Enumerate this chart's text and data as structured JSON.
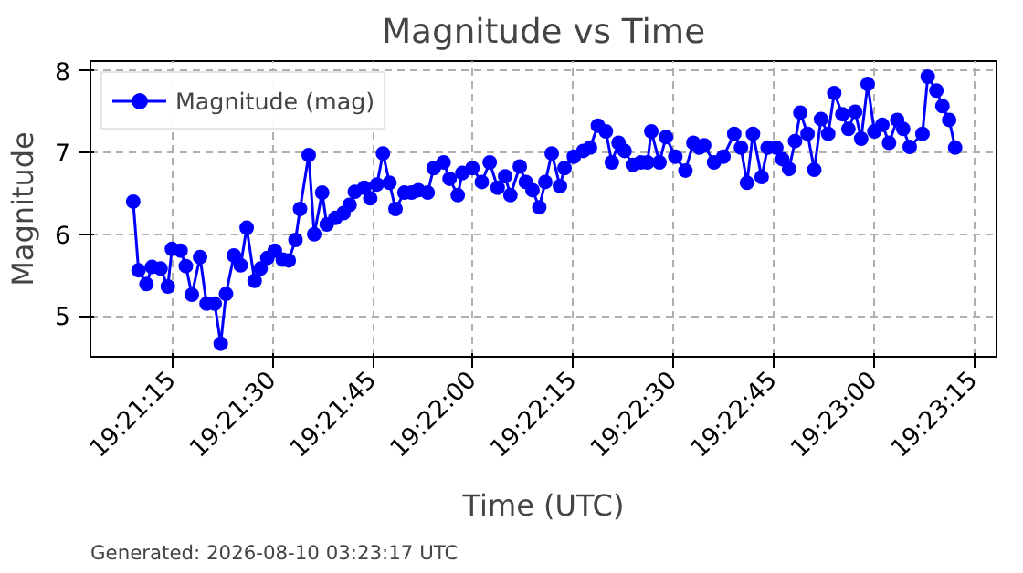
{
  "chart_data": {
    "type": "line",
    "title": "Magnitude vs Time",
    "xlabel": "Time (UTC)",
    "ylabel": "Magnitude",
    "annotations": [
      "Generated: 2026-08-10 03:23:17 UTC"
    ],
    "x": [
      19.35253,
      19.35275,
      19.35308,
      19.35331,
      19.35367,
      19.35397,
      19.35414,
      19.3545,
      19.35472,
      19.35497,
      19.35531,
      19.35558,
      19.35592,
      19.35617,
      19.35639,
      19.35672,
      19.357,
      19.35725,
      19.35758,
      19.35783,
      19.35811,
      19.35842,
      19.35875,
      19.359,
      19.35928,
      19.35947,
      19.35983,
      19.36006,
      19.36039,
      19.36058,
      19.36094,
      19.36128,
      19.36153,
      19.36175,
      19.36214,
      19.36239,
      19.36267,
      19.36292,
      19.36319,
      19.36344,
      19.36381,
      19.36411,
      19.36439,
      19.36478,
      19.36503,
      19.36544,
      19.36569,
      19.36603,
      19.36622,
      19.36664,
      19.36703,
      19.36736,
      19.36769,
      19.368,
      19.36822,
      19.36861,
      19.36886,
      19.36914,
      19.36942,
      19.36967,
      19.36994,
      19.37028,
      19.37047,
      19.37086,
      19.37125,
      19.37153,
      19.37186,
      19.37219,
      19.37244,
      19.37272,
      19.37297,
      19.37331,
      19.37364,
      19.37392,
      19.37408,
      19.37442,
      19.37469,
      19.37508,
      19.3755,
      19.37583,
      19.37608,
      19.37628,
      19.37669,
      19.37708,
      19.37753,
      19.37781,
      19.37806,
      19.37831,
      19.37867,
      19.37892,
      19.37928,
      19.37953,
      19.37981,
      19.38006,
      19.38028,
      19.38058,
      19.38086,
      19.38114,
      19.38144,
      19.38169,
      19.38203,
      19.38228,
      19.38256,
      19.38281,
      19.38308,
      19.38336,
      19.38369,
      19.38397,
      19.38431,
      19.38456,
      19.38483,
      19.38536,
      19.38558,
      19.38594,
      19.38619,
      19.38647,
      19.38672
    ],
    "series": [
      {
        "name": "Magnitude (mag)",
        "color": "#0000ff",
        "values": [
          6.4,
          5.56,
          5.39,
          5.6,
          5.58,
          5.36,
          5.82,
          5.8,
          5.61,
          5.26,
          5.72,
          5.15,
          5.15,
          4.66,
          5.27,
          5.74,
          5.62,
          6.08,
          5.43,
          5.58,
          5.71,
          5.8,
          5.69,
          5.68,
          5.93,
          6.31,
          6.97,
          6.0,
          6.51,
          6.12,
          6.2,
          6.26,
          6.36,
          6.52,
          6.57,
          6.44,
          6.61,
          6.99,
          6.63,
          6.31,
          6.51,
          6.51,
          6.54,
          6.51,
          6.81,
          6.88,
          6.68,
          6.48,
          6.75,
          6.81,
          6.64,
          6.88,
          6.57,
          6.71,
          6.48,
          6.83,
          6.64,
          6.54,
          6.33,
          6.64,
          6.99,
          6.59,
          6.81,
          6.95,
          7.02,
          7.06,
          7.33,
          7.26,
          6.88,
          7.12,
          7.02,
          6.85,
          6.88,
          6.88,
          7.26,
          6.88,
          7.19,
          6.95,
          6.78,
          7.12,
          7.06,
          7.09,
          6.88,
          6.95,
          7.23,
          7.06,
          6.63,
          7.23,
          6.7,
          7.06,
          7.06,
          6.92,
          6.8,
          7.14,
          7.49,
          7.23,
          6.79,
          7.41,
          7.23,
          7.73,
          7.47,
          7.29,
          7.5,
          7.17,
          7.84,
          7.26,
          7.34,
          7.12,
          7.4,
          7.29,
          7.07,
          7.23,
          7.93,
          7.76,
          7.57,
          7.4,
          7.06
        ]
      }
    ],
    "xlim": [
      19.35075,
      19.38844
    ],
    "xticks": [
      {
        "value": 19.354167,
        "label": "19:21:15"
      },
      {
        "value": 19.358333,
        "label": "19:21:30"
      },
      {
        "value": 19.3625,
        "label": "19:21:45"
      },
      {
        "value": 19.366667,
        "label": "19:22:00"
      },
      {
        "value": 19.370833,
        "label": "19:22:15"
      },
      {
        "value": 19.375,
        "label": "19:22:30"
      },
      {
        "value": 19.379167,
        "label": "19:22:45"
      },
      {
        "value": 19.383333,
        "label": "19:23:00"
      },
      {
        "value": 19.3875,
        "label": "19:23:15"
      }
    ],
    "ylim": [
      4.5,
      8.12
    ],
    "yticks": [
      5,
      6,
      7,
      8
    ],
    "grid": true,
    "legend": "top left",
    "marker": "circle",
    "line_style": "solid"
  }
}
